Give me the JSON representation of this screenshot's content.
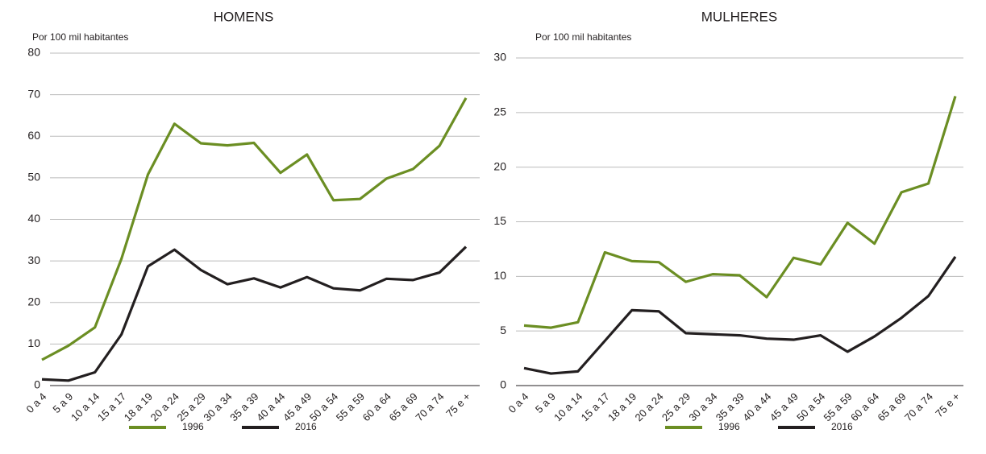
{
  "chart_data": [
    {
      "type": "line",
      "title": "HOMENS",
      "ylabel": "Por 100 mil habitantes",
      "categories": [
        "0 a 4",
        "5 a 9",
        "10 a 14",
        "15 a 17",
        "18 a 19",
        "20 a 24",
        "25 a 29",
        "30 a 34",
        "35 a 39",
        "40 a 44",
        "45 a 49",
        "50 a 54",
        "55 a 59",
        "60 a 64",
        "65 a 69",
        "70 a 74",
        "75 e +"
      ],
      "series": [
        {
          "name": "1996",
          "color": "#6b8e23",
          "values": [
            6.2,
            9.6,
            14,
            30.5,
            50.8,
            63,
            58.3,
            57.8,
            58.4,
            51.2,
            55.6,
            44.6,
            44.9,
            49.8,
            52.1,
            57.7,
            69.2
          ]
        },
        {
          "name": "2016",
          "color": "#231f20",
          "values": [
            1.5,
            1.2,
            3.2,
            12.3,
            28.7,
            32.7,
            27.8,
            24.4,
            25.8,
            23.6,
            26.1,
            23.4,
            22.9,
            25.7,
            25.4,
            27.2,
            33.4
          ]
        }
      ],
      "ylim": [
        0,
        80
      ],
      "yticks": [
        0,
        10,
        20,
        30,
        40,
        50,
        60,
        70,
        80
      ],
      "grid": true,
      "legend": "bottom"
    },
    {
      "type": "line",
      "title": "MULHERES",
      "ylabel": "Por 100 mil habitantes",
      "categories": [
        "0 a 4",
        "5 a 9",
        "10 a 14",
        "15 a 17",
        "18 a 19",
        "20 a 24",
        "25 a 29",
        "30 a 34",
        "35 a 39",
        "40 a 44",
        "45 a 49",
        "50 a 54",
        "55 a 59",
        "60 a 64",
        "65 a 69",
        "70 a 74",
        "75 e +"
      ],
      "series": [
        {
          "name": "1996",
          "color": "#6b8e23",
          "values": [
            5.5,
            5.3,
            5.8,
            12.2,
            11.4,
            11.3,
            9.5,
            10.2,
            10.1,
            8.1,
            11.7,
            11.1,
            14.9,
            13.0,
            17.7,
            18.5,
            26.5
          ]
        },
        {
          "name": "2016",
          "color": "#231f20",
          "values": [
            1.6,
            1.1,
            1.3,
            4.1,
            6.9,
            6.8,
            4.8,
            4.7,
            4.6,
            4.3,
            4.2,
            4.6,
            3.1,
            4.5,
            6.2,
            8.2,
            11.8
          ]
        }
      ],
      "ylim": [
        0,
        30
      ],
      "yticks": [
        0,
        5,
        10,
        15,
        20,
        25,
        30
      ],
      "grid": true,
      "legend": "bottom"
    }
  ]
}
